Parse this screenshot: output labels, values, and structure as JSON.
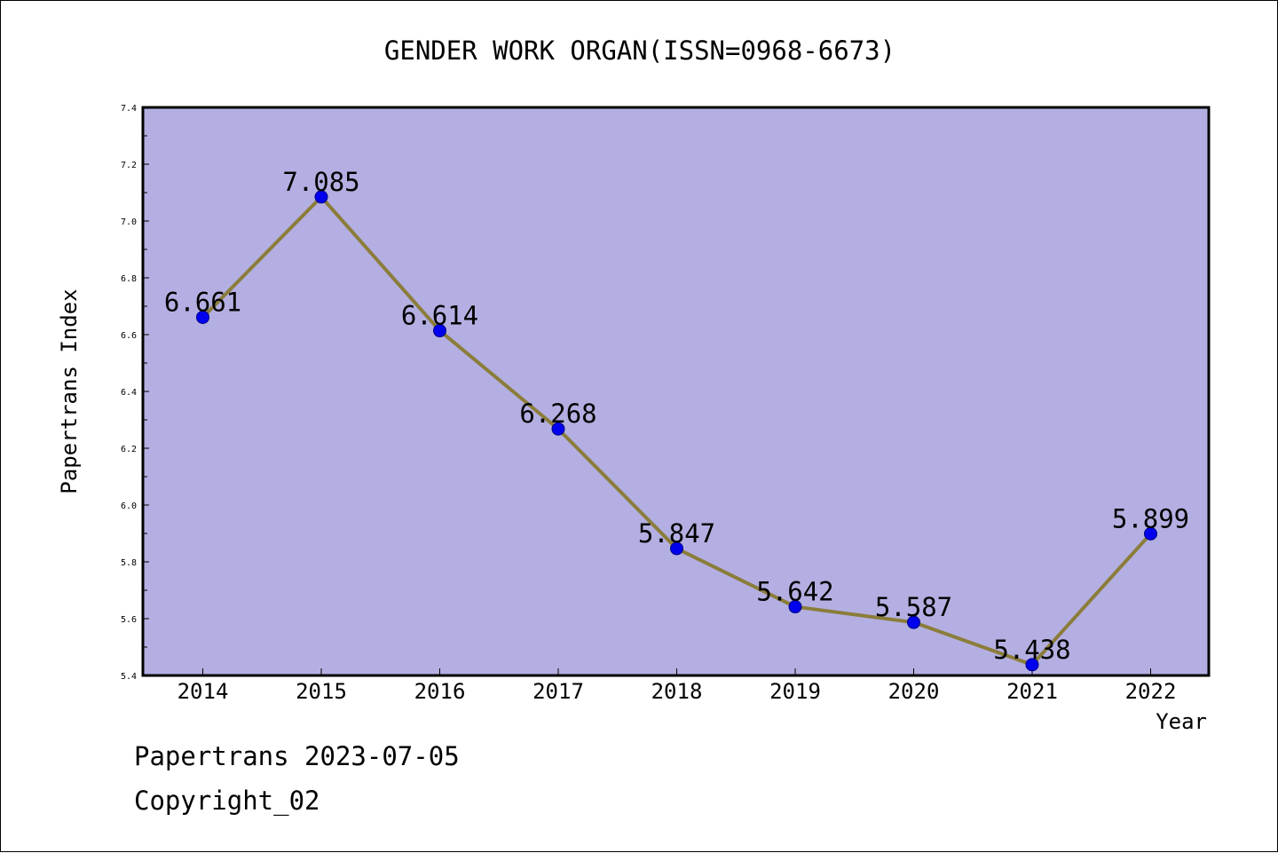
{
  "chart_data": {
    "type": "line",
    "title": "GENDER WORK ORGAN(ISSN=0968-6673)",
    "xlabel": "Year",
    "ylabel": "Papertrans Index",
    "categories": [
      "2014",
      "2015",
      "2016",
      "2017",
      "2018",
      "2019",
      "2020",
      "2021",
      "2022"
    ],
    "series": [
      {
        "values": [
          6.661,
          7.085,
          6.614,
          6.268,
          5.847,
          5.642,
          5.587,
          5.438,
          5.899
        ],
        "labels": [
          "6.661",
          "7.085",
          "6.614",
          "6.268",
          "5.847",
          "5.642",
          "5.587",
          "5.438",
          "5.899"
        ]
      }
    ],
    "ylim": [
      5.4,
      7.4
    ],
    "yticks": [
      "5.4",
      "5.6",
      "5.8",
      "6.0",
      "6.2",
      "6.4",
      "6.6",
      "6.8",
      "7.0",
      "7.2",
      "7.4"
    ],
    "grid": false,
    "colors": {
      "plot_background": "#b4afe2",
      "line": "#8b7d3a",
      "marker": "#0000ee",
      "marker_edge": "#000080"
    }
  },
  "footer": {
    "line1": "Papertrans 2023-07-05",
    "line2": "Copyright_02"
  }
}
